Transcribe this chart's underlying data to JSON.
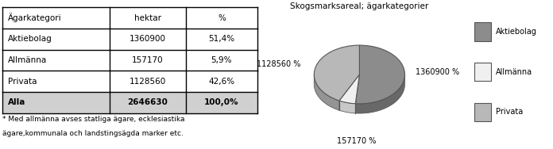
{
  "table_headers": [
    "Ägarkategori",
    "hektar",
    "%"
  ],
  "table_rows": [
    [
      "Aktiebolag",
      "1360900",
      "51,4%"
    ],
    [
      "Allmänna",
      "157170",
      "5,9%"
    ],
    [
      "Privata",
      "1128560",
      "42,6%"
    ],
    [
      "Alla",
      "2646630",
      "100,0%"
    ]
  ],
  "footnote_line1": "* Med allmänna avses statliga ägare, ecklesiastika",
  "footnote_line2": "ägare,kommunala och landstingsägda marker etc.",
  "pie_title": "Skogsmarksareal; ägarkategorier",
  "pie_values": [
    1360900,
    157170,
    1128560
  ],
  "pie_label_texts": [
    "1360900 %",
    "157170 %",
    "1128560 %"
  ],
  "pie_legend_labels": [
    "Aktiebolag",
    "Allmänna",
    "Privata"
  ],
  "pie_colors_top": [
    "#8c8c8c",
    "#f0f0f0",
    "#b8b8b8"
  ],
  "pie_colors_side": [
    "#686868",
    "#c8c8c8",
    "#949494"
  ],
  "pie_edge_color": "#555555",
  "last_row_bg": "#d0d0d0",
  "background_color": "#ffffff",
  "table_font_size": 7.5,
  "footnote_font_size": 6.5
}
